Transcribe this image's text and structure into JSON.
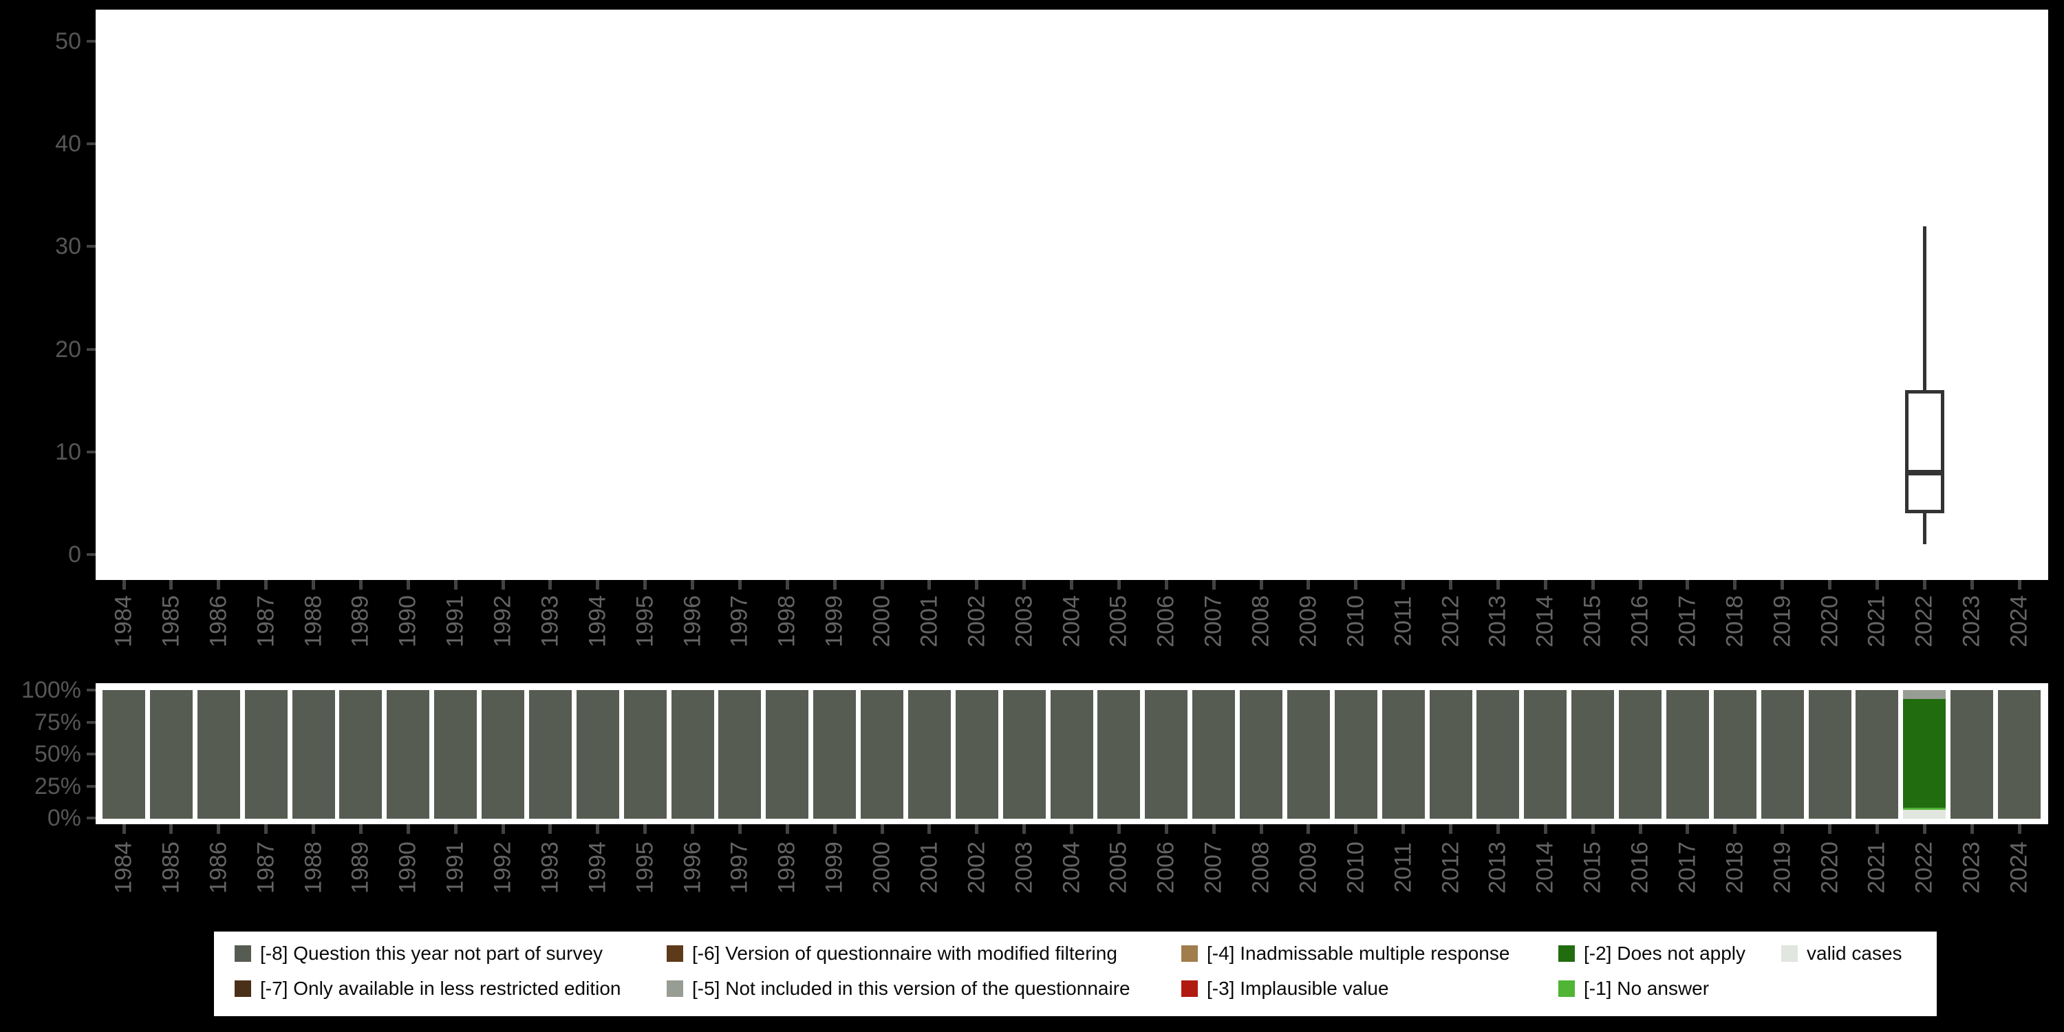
{
  "page": {
    "background": "#000000",
    "plot_background": "#ffffff"
  },
  "colors": {
    "-8": "#565c52",
    "-7": "#4a3018",
    "-6": "#5d3a1a",
    "-5": "#989d93",
    "-4": "#a17d4e",
    "-3": "#b01a10",
    "-2": "#226c10",
    "-1": "#50b434",
    "valid": "#e1e6de",
    "box_stroke": "#333333",
    "tick": "#434343",
    "axis_number_label": "#565656",
    "year_label": "#646464",
    "legend_text": "#0a0a0a"
  },
  "legend": {
    "columns": [
      [
        "-8",
        "-7"
      ],
      [
        "-6",
        "-5"
      ],
      [
        "-4",
        "-3"
      ],
      [
        "-2",
        "-1"
      ],
      [
        "valid"
      ]
    ],
    "labels": {
      "-8": "[-8] Question this year not part of survey",
      "-7": "[-7] Only available in less restricted edition",
      "-6": "[-6] Version of questionnaire with modified filtering",
      "-5": "[-5] Not included in this version of the questionnaire",
      "-4": "[-4] Inadmissable multiple response",
      "-3": "[-3] Implausible value",
      "-2": "[-2] Does not apply",
      "-1": "[-1] No answer",
      "valid": "valid cases"
    }
  },
  "chart_data": [
    {
      "id": "value-boxplot-by-year",
      "type": "boxplot",
      "title": "",
      "xlabel": "",
      "ylabel": "",
      "ylim": [
        0,
        50
      ],
      "y_ticks": [
        0,
        10,
        20,
        30,
        40,
        50
      ],
      "grid": false,
      "x_ticks": [
        "1984",
        "1985",
        "1986",
        "1987",
        "1988",
        "1989",
        "1990",
        "1991",
        "1992",
        "1993",
        "1994",
        "1995",
        "1996",
        "1997",
        "1998",
        "1999",
        "2000",
        "2001",
        "2002",
        "2003",
        "2004",
        "2005",
        "2006",
        "2007",
        "2008",
        "2009",
        "2010",
        "2011",
        "2012",
        "2013",
        "2014",
        "2015",
        "2016",
        "2017",
        "2018",
        "2019",
        "2020",
        "2021",
        "2022",
        "2023",
        "2024"
      ],
      "series": [
        {
          "x": "2022",
          "whisker_low": 1,
          "q1": 4,
          "median": 8,
          "q3": 16,
          "whisker_high": 32
        }
      ]
    },
    {
      "id": "missing-codes-stacked-bars",
      "type": "stacked-bar",
      "unit": "percent",
      "title": "",
      "legend_position": "bottom",
      "y_ticks": [
        "0%",
        "25%",
        "50%",
        "75%",
        "100%"
      ],
      "y_tick_values": [
        0,
        25,
        50,
        75,
        100
      ],
      "x_ticks": [
        "1984",
        "1985",
        "1986",
        "1987",
        "1988",
        "1989",
        "1990",
        "1991",
        "1992",
        "1993",
        "1994",
        "1995",
        "1996",
        "1997",
        "1998",
        "1999",
        "2000",
        "2001",
        "2002",
        "2003",
        "2004",
        "2005",
        "2006",
        "2007",
        "2008",
        "2009",
        "2010",
        "2011",
        "2012",
        "2013",
        "2014",
        "2015",
        "2016",
        "2017",
        "2018",
        "2019",
        "2020",
        "2021",
        "2022",
        "2023",
        "2024"
      ],
      "bars": [
        {
          "year": "1984",
          "segments": [
            {
              "code": "-8",
              "pct": 100
            }
          ]
        },
        {
          "year": "1985",
          "segments": [
            {
              "code": "-8",
              "pct": 100
            }
          ]
        },
        {
          "year": "1986",
          "segments": [
            {
              "code": "-8",
              "pct": 100
            }
          ]
        },
        {
          "year": "1987",
          "segments": [
            {
              "code": "-8",
              "pct": 100
            }
          ]
        },
        {
          "year": "1988",
          "segments": [
            {
              "code": "-8",
              "pct": 100
            }
          ]
        },
        {
          "year": "1989",
          "segments": [
            {
              "code": "-8",
              "pct": 100
            }
          ]
        },
        {
          "year": "1990",
          "segments": [
            {
              "code": "-8",
              "pct": 100
            }
          ]
        },
        {
          "year": "1991",
          "segments": [
            {
              "code": "-8",
              "pct": 100
            }
          ]
        },
        {
          "year": "1992",
          "segments": [
            {
              "code": "-8",
              "pct": 100
            }
          ]
        },
        {
          "year": "1993",
          "segments": [
            {
              "code": "-8",
              "pct": 100
            }
          ]
        },
        {
          "year": "1994",
          "segments": [
            {
              "code": "-8",
              "pct": 100
            }
          ]
        },
        {
          "year": "1995",
          "segments": [
            {
              "code": "-8",
              "pct": 100
            }
          ]
        },
        {
          "year": "1996",
          "segments": [
            {
              "code": "-8",
              "pct": 100
            }
          ]
        },
        {
          "year": "1997",
          "segments": [
            {
              "code": "-8",
              "pct": 100
            }
          ]
        },
        {
          "year": "1998",
          "segments": [
            {
              "code": "-8",
              "pct": 100
            }
          ]
        },
        {
          "year": "1999",
          "segments": [
            {
              "code": "-8",
              "pct": 100
            }
          ]
        },
        {
          "year": "2000",
          "segments": [
            {
              "code": "-8",
              "pct": 100
            }
          ]
        },
        {
          "year": "2001",
          "segments": [
            {
              "code": "-8",
              "pct": 100
            }
          ]
        },
        {
          "year": "2002",
          "segments": [
            {
              "code": "-8",
              "pct": 100
            }
          ]
        },
        {
          "year": "2003",
          "segments": [
            {
              "code": "-8",
              "pct": 100
            }
          ]
        },
        {
          "year": "2004",
          "segments": [
            {
              "code": "-8",
              "pct": 100
            }
          ]
        },
        {
          "year": "2005",
          "segments": [
            {
              "code": "-8",
              "pct": 100
            }
          ]
        },
        {
          "year": "2006",
          "segments": [
            {
              "code": "-8",
              "pct": 100
            }
          ]
        },
        {
          "year": "2007",
          "segments": [
            {
              "code": "-8",
              "pct": 100
            }
          ]
        },
        {
          "year": "2008",
          "segments": [
            {
              "code": "-8",
              "pct": 100
            }
          ]
        },
        {
          "year": "2009",
          "segments": [
            {
              "code": "-8",
              "pct": 100
            }
          ]
        },
        {
          "year": "2010",
          "segments": [
            {
              "code": "-8",
              "pct": 100
            }
          ]
        },
        {
          "year": "2011",
          "segments": [
            {
              "code": "-8",
              "pct": 100
            }
          ]
        },
        {
          "year": "2012",
          "segments": [
            {
              "code": "-8",
              "pct": 100
            }
          ]
        },
        {
          "year": "2013",
          "segments": [
            {
              "code": "-8",
              "pct": 100
            }
          ]
        },
        {
          "year": "2014",
          "segments": [
            {
              "code": "-8",
              "pct": 100
            }
          ]
        },
        {
          "year": "2015",
          "segments": [
            {
              "code": "-8",
              "pct": 100
            }
          ]
        },
        {
          "year": "2016",
          "segments": [
            {
              "code": "-8",
              "pct": 100
            }
          ]
        },
        {
          "year": "2017",
          "segments": [
            {
              "code": "-8",
              "pct": 100
            }
          ]
        },
        {
          "year": "2018",
          "segments": [
            {
              "code": "-8",
              "pct": 100
            }
          ]
        },
        {
          "year": "2019",
          "segments": [
            {
              "code": "-8",
              "pct": 100
            }
          ]
        },
        {
          "year": "2020",
          "segments": [
            {
              "code": "-8",
              "pct": 100
            }
          ]
        },
        {
          "year": "2021",
          "segments": [
            {
              "code": "-8",
              "pct": 100
            }
          ]
        },
        {
          "year": "2022",
          "segments": [
            {
              "code": "-5",
              "pct": 7.0
            },
            {
              "code": "-2",
              "pct": 84.5
            },
            {
              "code": "-1",
              "pct": 1.8
            },
            {
              "code": "valid",
              "pct": 6.7
            }
          ]
        },
        {
          "year": "2023",
          "segments": [
            {
              "code": "-8",
              "pct": 100
            }
          ]
        },
        {
          "year": "2024",
          "segments": [
            {
              "code": "-8",
              "pct": 100
            }
          ]
        }
      ]
    }
  ]
}
